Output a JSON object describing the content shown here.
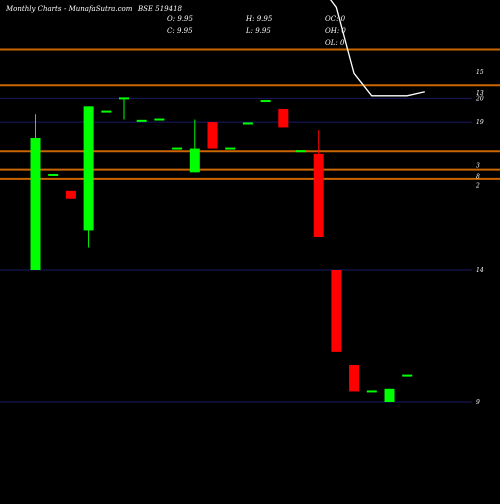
{
  "header": {
    "left": "Monthly Charts",
    "site": "- MunafaSutra.com",
    "symbol": "BSE 519418",
    "o": "O: 9.95",
    "c": "C: 9.95",
    "h": "H: 9.95",
    "l": "L: 9.95",
    "oc": "OC: 0",
    "oh": "OH: 0",
    "ol": "OL: 0"
  },
  "chart_data": {
    "type": "candlestick",
    "title": "BSE 519418",
    "background": "#000000",
    "colors": {
      "up": "#00ff00",
      "down": "#ff0000",
      "line": "#ffffff",
      "level": "#cc6600",
      "grid": "#1a1a66"
    },
    "ylabels": [
      {
        "text": "15",
        "v": 19.0
      },
      {
        "text": "13",
        "v": 17.4
      },
      {
        "text": "20",
        "v": 17.0
      },
      {
        "text": "19",
        "v": 15.2
      },
      {
        "text": "3",
        "v": 11.9
      },
      {
        "text": "8",
        "v": 11.1
      },
      {
        "text": "2",
        "v": 10.4
      },
      {
        "text": "14",
        "v": 4.0
      },
      {
        "text": "9",
        "v": -6.0
      }
    ],
    "gridlines": [
      17.0,
      15.2,
      4.0,
      -6.0
    ],
    "levels": [
      20.7,
      18.0,
      13.0,
      11.6,
      10.9
    ],
    "candles": [
      {
        "o": 4.0,
        "c": 14.0,
        "h": 15.8,
        "l": 4.0
      },
      {
        "o": 11.2,
        "c": 11.2,
        "h": 11.2,
        "l": 11.2
      },
      {
        "o": 10.0,
        "c": 9.4,
        "h": 10.0,
        "l": 9.4
      },
      {
        "o": 7.0,
        "c": 16.4,
        "h": 16.4,
        "l": 5.7
      },
      {
        "o": 16.0,
        "c": 16.0,
        "h": 16.0,
        "l": 16.0
      },
      {
        "o": 17.0,
        "c": 17.0,
        "h": 17.0,
        "l": 15.4
      },
      {
        "o": 15.3,
        "c": 15.3,
        "h": 15.3,
        "l": 15.3
      },
      {
        "o": 15.4,
        "c": 15.4,
        "h": 15.4,
        "l": 15.4
      },
      {
        "o": 13.2,
        "c": 13.2,
        "h": 13.2,
        "l": 13.2
      },
      {
        "o": 11.4,
        "c": 13.2,
        "h": 15.4,
        "l": 11.4
      },
      {
        "o": 15.2,
        "c": 13.2,
        "h": 15.2,
        "l": 13.2
      },
      {
        "o": 13.2,
        "c": 13.2,
        "h": 13.2,
        "l": 13.2
      },
      {
        "o": 15.1,
        "c": 15.1,
        "h": 15.1,
        "l": 15.1
      },
      {
        "o": 16.8,
        "c": 16.8,
        "h": 16.8,
        "l": 16.8
      },
      {
        "o": 16.2,
        "c": 14.8,
        "h": 16.2,
        "l": 14.8
      },
      {
        "o": 13.0,
        "c": 13.0,
        "h": 13.0,
        "l": 13.0
      },
      {
        "o": 12.8,
        "c": 6.5,
        "h": 14.6,
        "l": 6.5
      },
      {
        "o": 4.0,
        "c": -2.2,
        "h": 4.0,
        "l": -2.2
      },
      {
        "o": -3.2,
        "c": -5.2,
        "h": -3.2,
        "l": -5.2
      },
      {
        "o": -5.2,
        "c": -5.2,
        "h": -5.2,
        "l": -5.2
      },
      {
        "o": -6.0,
        "c": -5.0,
        "h": -5.0,
        "l": -6.0
      },
      {
        "o": -4.0,
        "c": -4.0,
        "h": -4.0,
        "l": -4.0
      }
    ],
    "volume_line": [
      25.4,
      27.5,
      30.6,
      29.2,
      28.5,
      32.2,
      32.1,
      32.3,
      32.9,
      31.9,
      31.9,
      31.4,
      31.4,
      31.4,
      31.9,
      33.1,
      31.6,
      28.5,
      25.7,
      23.9,
      18.9,
      17.2,
      17.2,
      17.2,
      17.5
    ]
  }
}
